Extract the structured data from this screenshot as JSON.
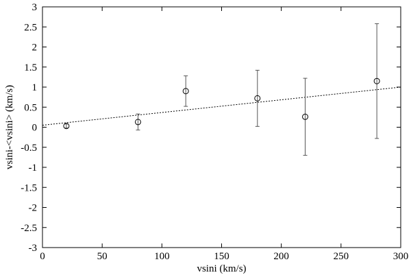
{
  "chart_data": {
    "type": "scatter",
    "title": "",
    "xlabel": "vsini (km/s)",
    "ylabel": "vsini-<vsini> (km/s)",
    "xlim": [
      0,
      300
    ],
    "ylim": [
      -3,
      3
    ],
    "x_ticks": [
      0,
      50,
      100,
      150,
      200,
      250,
      300
    ],
    "y_ticks": [
      -3,
      -2.5,
      -2,
      -1.5,
      -1,
      -0.5,
      0,
      0.5,
      1,
      1.5,
      2,
      2.5,
      3
    ],
    "grid": false,
    "legend": "none",
    "points": [
      {
        "x": 20,
        "y": 0.03,
        "err": 0.05
      },
      {
        "x": 80,
        "y": 0.13,
        "err": 0.2
      },
      {
        "x": 120,
        "y": 0.9,
        "err": 0.38
      },
      {
        "x": 180,
        "y": 0.72,
        "err": 0.7
      },
      {
        "x": 220,
        "y": 0.26,
        "err": 0.96
      },
      {
        "x": 280,
        "y": 1.15,
        "err": 1.43
      }
    ],
    "fit_line": {
      "x": [
        0,
        300
      ],
      "y": [
        0.05,
        1.0
      ],
      "style": "dotted"
    }
  }
}
